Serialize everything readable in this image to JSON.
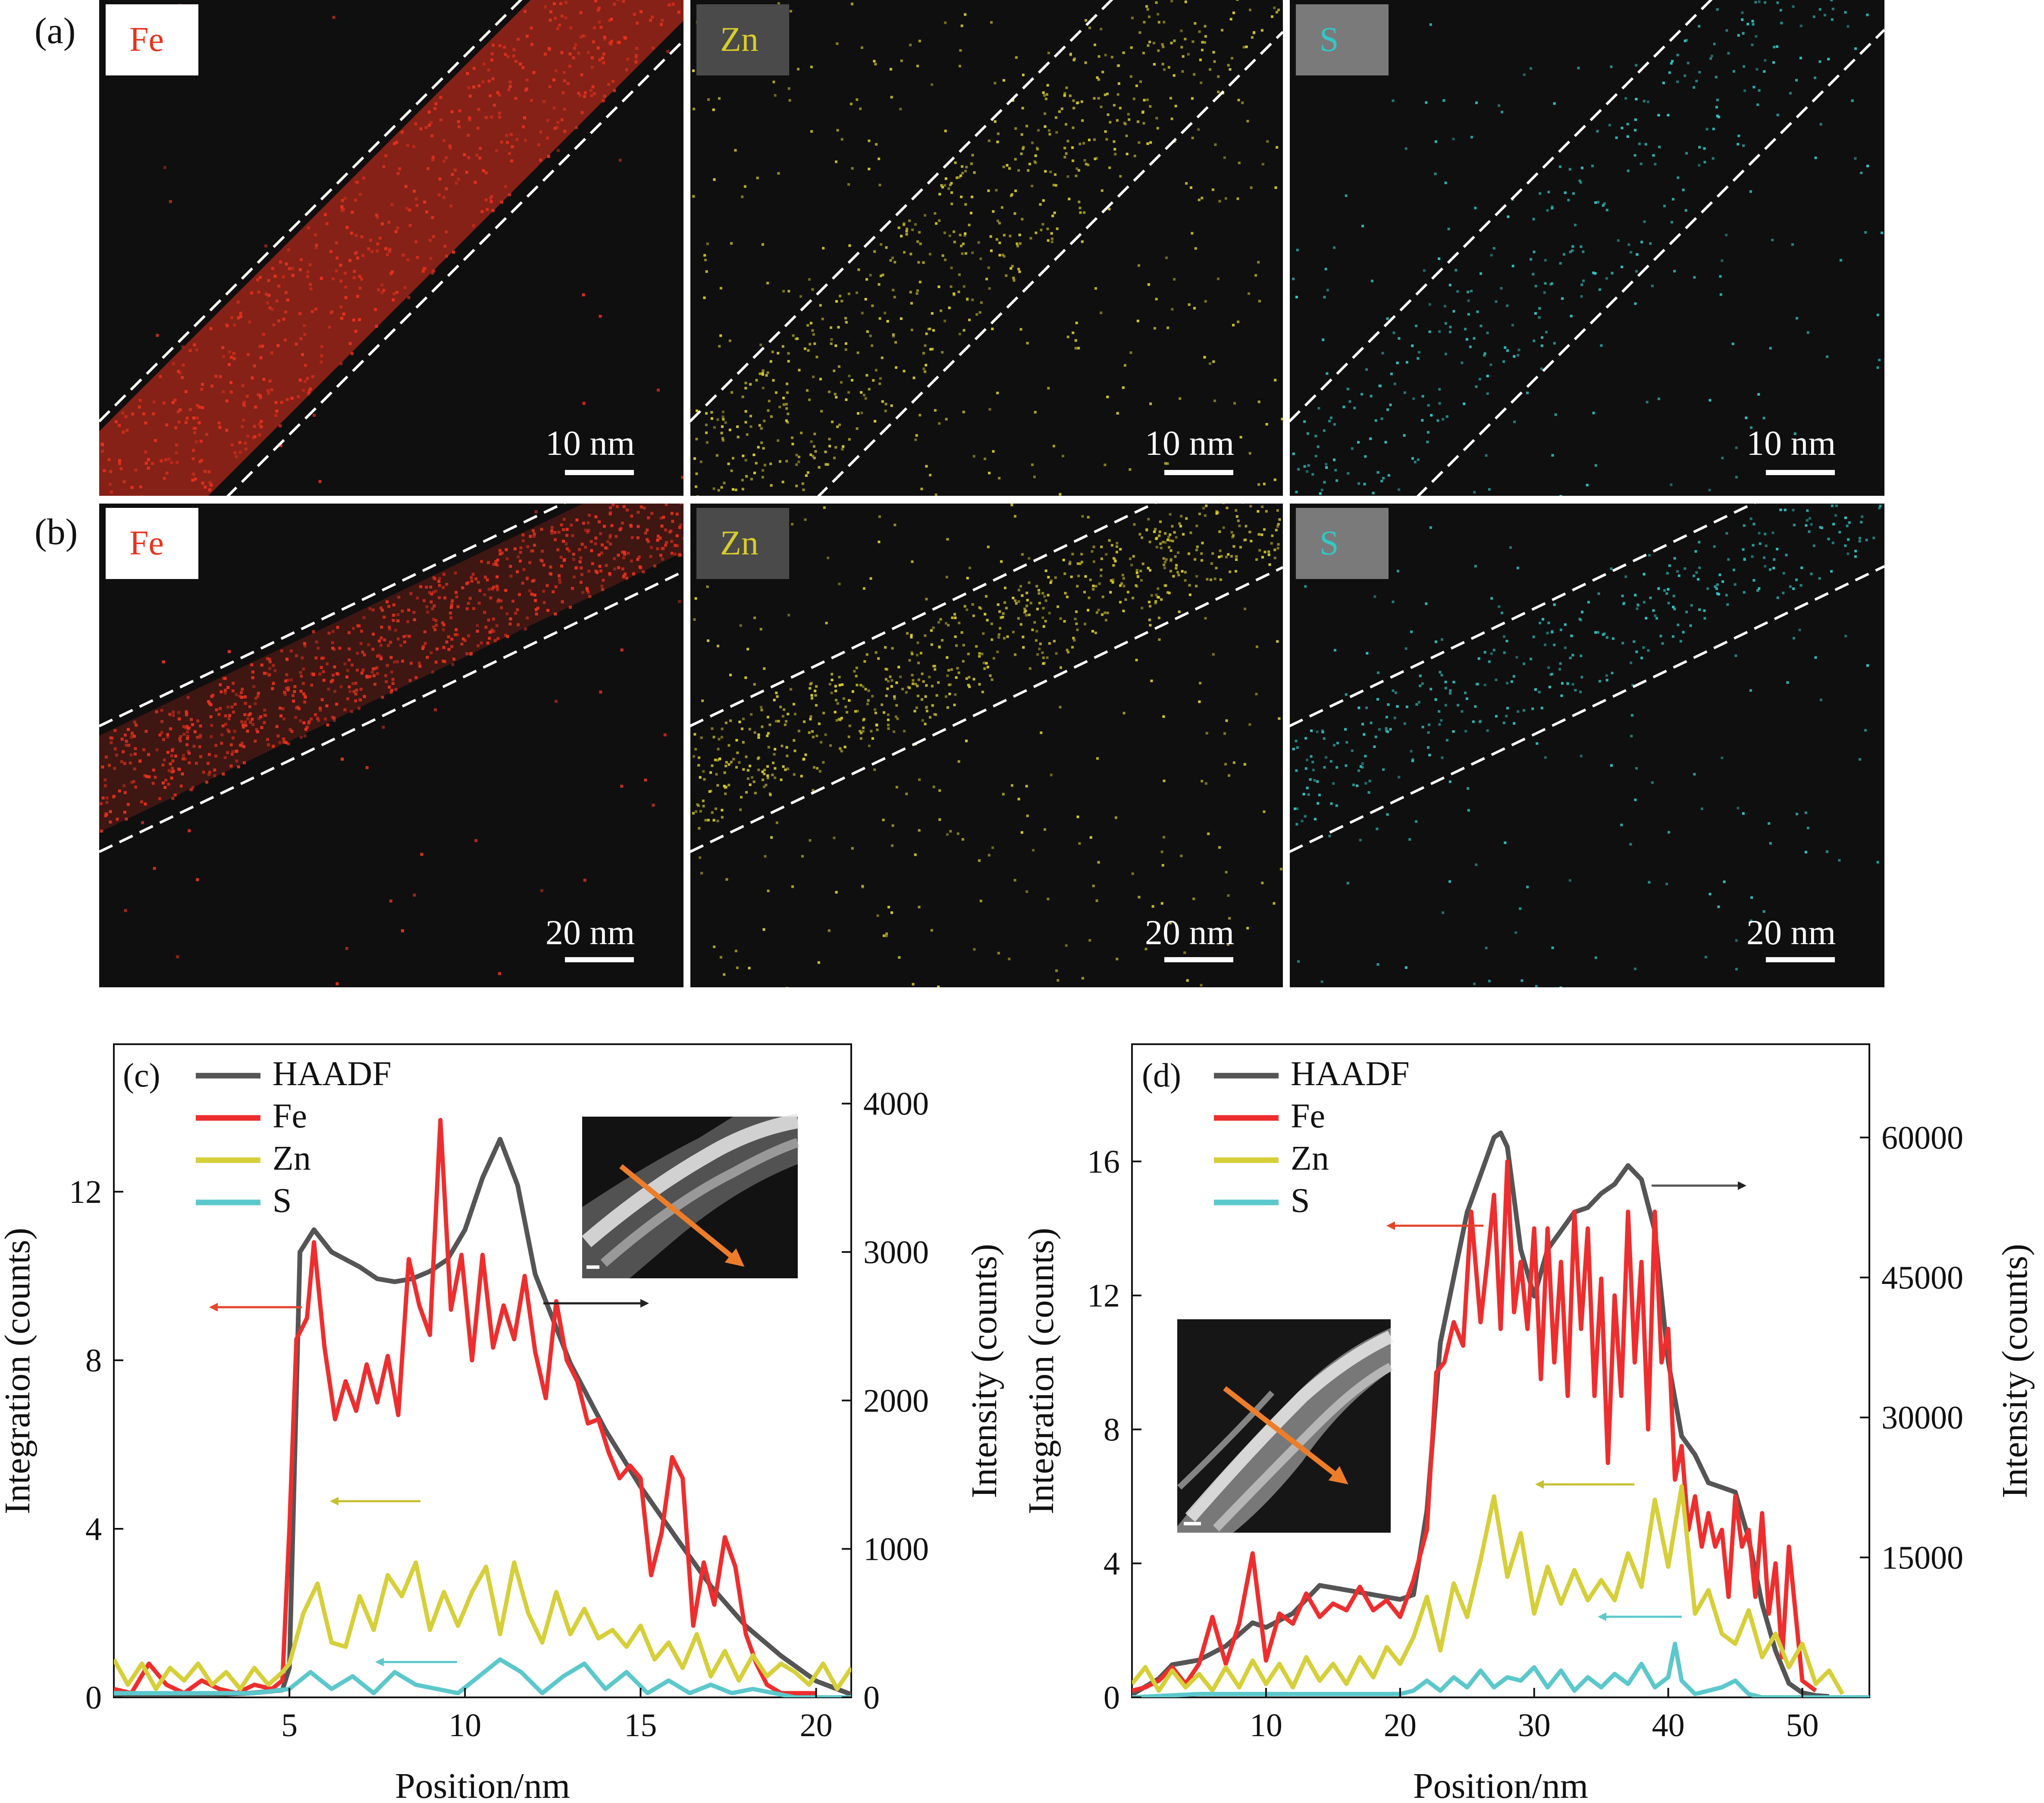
{
  "maps": {
    "rows": [
      {
        "label": "(a)",
        "scale": "10 nm"
      },
      {
        "label": "(b)",
        "scale": "20 nm"
      }
    ],
    "elements": [
      {
        "name": "Fe",
        "color": "#e8321e",
        "badge_bg": "#ffffff"
      },
      {
        "name": "Zn",
        "color": "#d8cc2c",
        "badge_bg": "#4a4a4a"
      },
      {
        "name": "S",
        "color": "#32c8c8",
        "badge_bg": "#7a7a7a"
      }
    ]
  },
  "chart_data": [
    {
      "panel": "(c)",
      "type": "line",
      "xlabel": "Position/nm",
      "ylabel": "Integration (counts)",
      "y2label": "Intensity (counts)",
      "xlim": [
        0,
        21
      ],
      "ylim": [
        0,
        15.5
      ],
      "y2lim": [
        0,
        4400
      ],
      "xticks": [
        5,
        10,
        15,
        20
      ],
      "yticks": [
        0,
        4,
        8,
        12
      ],
      "y2ticks": [
        0,
        1000,
        2000,
        3000,
        4000
      ],
      "legend": [
        "HAADF",
        "Fe",
        "Zn",
        "S"
      ],
      "colors": {
        "HAADF": "#555555",
        "Fe": "#ee2e2e",
        "Zn": "#d6cf3a",
        "S": "#5cc8cc"
      },
      "series": [
        {
          "name": "HAADF",
          "axis": "right",
          "x": [
            0,
            1,
            2,
            3,
            4,
            4.8,
            5.0,
            5.3,
            5.7,
            6.2,
            7,
            7.5,
            8,
            8.5,
            9,
            9.5,
            10,
            10.5,
            11,
            11.5,
            12,
            13,
            14,
            15,
            16,
            17,
            18,
            19,
            20,
            21
          ],
          "y": [
            20,
            20,
            20,
            20,
            30,
            50,
            200,
            3000,
            3150,
            3000,
            2900,
            2820,
            2800,
            2820,
            2870,
            2950,
            3150,
            3500,
            3760,
            3450,
            2850,
            2250,
            1800,
            1420,
            1080,
            750,
            480,
            280,
            110,
            20
          ]
        },
        {
          "name": "Fe",
          "axis": "left",
          "x": [
            0,
            0.5,
            1,
            1.5,
            2,
            2.5,
            3,
            3.5,
            4,
            4.5,
            4.8,
            5.0,
            5.2,
            5.5,
            5.7,
            6.0,
            6.3,
            6.6,
            6.9,
            7.2,
            7.5,
            7.8,
            8.1,
            8.4,
            8.7,
            9.0,
            9.3,
            9.6,
            9.9,
            10.2,
            10.5,
            10.8,
            11.1,
            11.4,
            11.7,
            12.0,
            12.3,
            12.6,
            12.9,
            13.2,
            13.5,
            13.8,
            14.1,
            14.4,
            14.7,
            15.0,
            15.3,
            15.6,
            15.9,
            16.2,
            16.5,
            16.8,
            17.1,
            17.4,
            17.7,
            18.0,
            18.3,
            18.6,
            19.0,
            19.5,
            20.0
          ],
          "y": [
            0.2,
            0.1,
            0.8,
            0.3,
            0.1,
            0.4,
            0.2,
            0.1,
            0.3,
            0.2,
            0.4,
            4.0,
            8.5,
            9.0,
            10.8,
            8.3,
            6.6,
            7.5,
            6.8,
            7.9,
            7.0,
            8.1,
            6.7,
            10.4,
            9.3,
            8.6,
            13.7,
            9.2,
            10.5,
            8.0,
            10.5,
            8.3,
            9.3,
            8.5,
            10.0,
            8.2,
            7.1,
            9.4,
            8.0,
            7.5,
            6.5,
            6.6,
            5.8,
            5.2,
            5.5,
            5.2,
            2.9,
            3.9,
            5.7,
            5.2,
            1.7,
            3.2,
            2.2,
            3.8,
            3.1,
            1.5,
            0.8,
            0.3,
            0.1,
            0.1,
            0.1
          ]
        },
        {
          "name": "Zn",
          "axis": "left",
          "x": [
            0,
            0.4,
            0.8,
            1.2,
            1.6,
            2.0,
            2.4,
            2.8,
            3.2,
            3.6,
            4.0,
            4.4,
            4.8,
            5.0,
            5.4,
            5.8,
            6.2,
            6.6,
            7.0,
            7.4,
            7.8,
            8.2,
            8.6,
            9.0,
            9.4,
            9.8,
            10.2,
            10.6,
            11.0,
            11.4,
            11.8,
            12.2,
            12.6,
            13.0,
            13.4,
            13.8,
            14.2,
            14.6,
            15.0,
            15.4,
            15.8,
            16.2,
            16.6,
            17.0,
            17.4,
            17.8,
            18.2,
            18.6,
            19.0,
            19.4,
            19.8,
            20.2,
            20.6,
            21.0
          ],
          "y": [
            0.9,
            0.3,
            0.8,
            0.2,
            0.7,
            0.4,
            0.8,
            0.3,
            0.6,
            0.2,
            0.7,
            0.3,
            0.6,
            0.8,
            2.0,
            2.7,
            1.3,
            1.2,
            2.4,
            1.6,
            2.9,
            2.4,
            3.2,
            1.6,
            2.5,
            1.7,
            2.5,
            3.1,
            1.5,
            3.2,
            2.0,
            1.3,
            2.5,
            1.5,
            2.1,
            1.4,
            1.6,
            1.2,
            1.7,
            0.9,
            1.3,
            0.7,
            1.5,
            0.5,
            1.1,
            0.4,
            1.0,
            0.5,
            0.8,
            0.6,
            0.3,
            0.8,
            0.2,
            0.7
          ]
        },
        {
          "name": "S",
          "axis": "left",
          "x": [
            0,
            1,
            2,
            3,
            4,
            5.0,
            5.6,
            6.2,
            6.8,
            7.4,
            8.0,
            8.6,
            9.2,
            9.8,
            10.4,
            11.0,
            11.6,
            12.2,
            12.8,
            13.4,
            14.0,
            14.6,
            15.2,
            15.8,
            16.4,
            17.0,
            17.6,
            18.2,
            18.8,
            19.4,
            20.0,
            21.0
          ],
          "y": [
            0.1,
            0.1,
            0.1,
            0.1,
            0.1,
            0.2,
            0.6,
            0.2,
            0.5,
            0.1,
            0.6,
            0.3,
            0.2,
            0.1,
            0.5,
            0.9,
            0.6,
            0.1,
            0.5,
            0.8,
            0.2,
            0.6,
            0.1,
            0.4,
            0.1,
            0.3,
            0.1,
            0.2,
            0.1,
            0.0,
            0.0,
            0.0
          ]
        }
      ]
    },
    {
      "panel": "(d)",
      "type": "line",
      "xlabel": "Position/nm",
      "ylabel": "Integration (counts)",
      "y2label": "Intensity (counts)",
      "xlim": [
        0,
        55
      ],
      "ylim": [
        0,
        19.5
      ],
      "y2lim": [
        0,
        70000
      ],
      "xticks": [
        10,
        20,
        30,
        40,
        50
      ],
      "yticks": [
        0,
        4,
        8,
        12,
        16
      ],
      "y2ticks": [
        15000,
        30000,
        45000,
        60000
      ],
      "legend": [
        "HAADF",
        "Fe",
        "Zn",
        "S"
      ],
      "colors": {
        "HAADF": "#555555",
        "Fe": "#ee2e2e",
        "Zn": "#d6cf3a",
        "S": "#5cc8cc"
      },
      "series": [
        {
          "name": "HAADF",
          "axis": "right",
          "x": [
            0,
            2,
            3,
            5,
            7,
            9,
            10,
            12,
            14,
            16,
            18,
            20,
            21,
            22,
            23,
            24,
            25,
            26,
            27,
            27.5,
            28,
            29,
            30,
            31,
            32,
            33,
            34,
            35,
            36,
            37,
            38,
            39,
            40,
            41,
            42,
            43,
            44,
            45,
            46,
            47,
            48,
            49,
            50,
            51,
            52
          ],
          "y": [
            300,
            2000,
            3500,
            4000,
            5500,
            8000,
            7500,
            9000,
            12000,
            11500,
            11000,
            10500,
            11000,
            20000,
            38000,
            45000,
            52000,
            56000,
            60000,
            60500,
            59000,
            48000,
            43000,
            48000,
            50000,
            52000,
            52500,
            54000,
            55000,
            57000,
            55500,
            50000,
            36000,
            28000,
            26000,
            23000,
            22500,
            22000,
            17000,
            10000,
            5000,
            1500,
            500,
            200,
            100
          ]
        },
        {
          "name": "Fe",
          "axis": "left",
          "x": [
            0,
            1,
            2,
            3,
            4,
            5,
            6,
            7,
            8,
            9,
            10,
            11,
            12,
            13,
            14,
            15,
            16,
            17,
            18,
            19,
            20,
            21,
            22,
            22.7,
            23.3,
            24,
            24.7,
            25.3,
            26,
            26.5,
            27,
            27.5,
            28,
            28.5,
            29,
            29.5,
            30,
            30.5,
            31,
            31.5,
            32,
            32.5,
            33,
            33.5,
            34,
            34.5,
            35,
            35.5,
            36,
            36.5,
            37,
            37.5,
            38,
            38.5,
            39,
            39.5,
            40,
            40.5,
            41,
            41.5,
            42,
            42.5,
            43,
            43.5,
            44,
            44.5,
            45,
            45.5,
            46,
            46.5,
            47,
            47.5,
            48,
            48.5,
            49,
            50,
            51
          ],
          "y": [
            0.2,
            0.3,
            0.5,
            0.9,
            0.4,
            1.0,
            2.4,
            1.0,
            2.2,
            4.3,
            1.1,
            2.5,
            2.2,
            3.1,
            2.4,
            2.8,
            2.6,
            3.3,
            2.6,
            2.9,
            2.4,
            3.5,
            5.0,
            9.7,
            10.0,
            11.2,
            10.5,
            14.5,
            11.2,
            13.0,
            15.0,
            11.0,
            16.0,
            11.5,
            13.0,
            11.0,
            14.0,
            9.5,
            14.0,
            10.0,
            13.0,
            9.0,
            14.5,
            11.0,
            14.0,
            9.0,
            12.5,
            7.0,
            12.0,
            9.0,
            14.5,
            10.0,
            13.0,
            8.0,
            14.5,
            10.0,
            11.0,
            6.5,
            7.5,
            5.0,
            6.0,
            4.5,
            5.5,
            4.5,
            5.0,
            3.0,
            6.0,
            4.5,
            5.0,
            3.0,
            5.5,
            2.5,
            4.0,
            1.2,
            4.5,
            0.5,
            0.2
          ]
        },
        {
          "name": "Zn",
          "axis": "left",
          "x": [
            0,
            1,
            2,
            3,
            4,
            5,
            6,
            7,
            8,
            9,
            10,
            11,
            12,
            13,
            14,
            15,
            16,
            17,
            18,
            19,
            20,
            21,
            22,
            23,
            24,
            25,
            26,
            27,
            28,
            29,
            30,
            31,
            32,
            33,
            34,
            35,
            36,
            37,
            38,
            39,
            40,
            41,
            42,
            43,
            44,
            45,
            46,
            47,
            48,
            49,
            50,
            51,
            52,
            53
          ],
          "y": [
            0.4,
            0.9,
            0.2,
            0.8,
            0.3,
            0.7,
            0.2,
            0.9,
            0.3,
            1.1,
            0.4,
            1.0,
            0.3,
            1.2,
            0.5,
            1.0,
            0.4,
            1.2,
            0.6,
            1.5,
            1.0,
            1.8,
            3.0,
            1.4,
            3.4,
            2.4,
            4.1,
            6.0,
            3.6,
            4.9,
            2.5,
            3.9,
            2.8,
            3.8,
            2.9,
            3.5,
            2.9,
            4.3,
            3.3,
            5.9,
            3.9,
            6.3,
            2.5,
            3.2,
            1.9,
            1.6,
            2.6,
            1.2,
            1.9,
            0.9,
            1.6,
            0.4,
            0.8,
            0.1
          ]
        },
        {
          "name": "S",
          "axis": "left",
          "x": [
            0,
            5,
            10,
            15,
            20,
            21,
            22,
            23,
            24,
            25,
            26,
            27,
            28,
            29,
            30,
            31,
            32,
            33,
            34,
            35,
            36,
            37,
            38,
            39,
            40,
            40.5,
            41,
            42,
            43,
            44,
            45,
            46,
            47,
            48,
            50,
            55
          ],
          "y": [
            0.0,
            0.1,
            0.1,
            0.1,
            0.1,
            0.2,
            0.5,
            0.2,
            0.6,
            0.3,
            0.8,
            0.3,
            0.6,
            0.5,
            0.9,
            0.3,
            0.8,
            0.2,
            0.6,
            0.3,
            0.7,
            0.4,
            1.0,
            0.3,
            0.6,
            1.6,
            0.5,
            0.1,
            0.2,
            0.3,
            0.5,
            0.1,
            0.0,
            0.0,
            0.0,
            0.0
          ]
        }
      ]
    }
  ]
}
